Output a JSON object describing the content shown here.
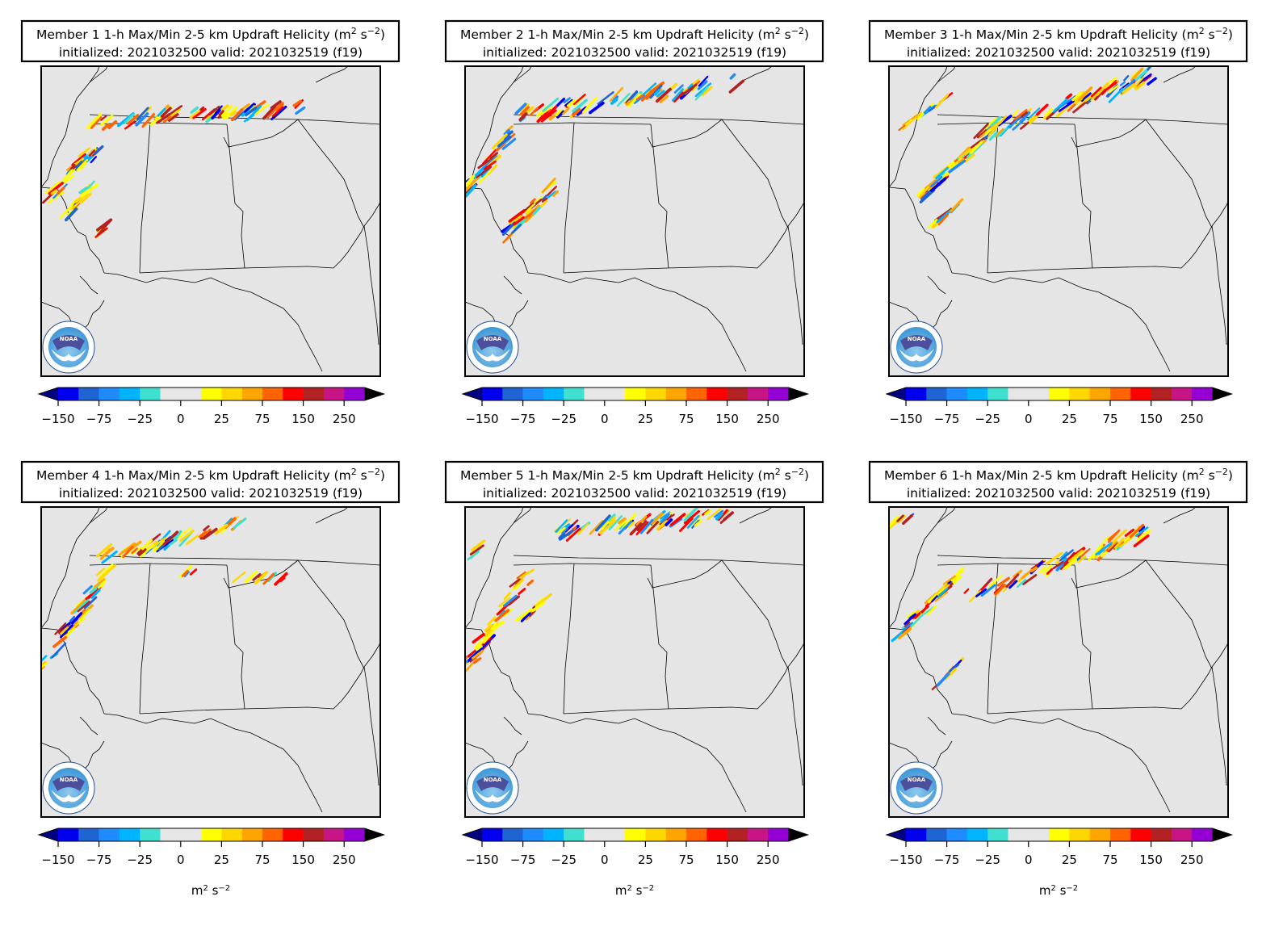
{
  "figure": {
    "title_line2": "initialized: 2021032500 valid: 2021032519 (f19)",
    "title_prefix": "1-h Max/Min 2-5 km Updraft Helicity (m",
    "title_units_sup": "2",
    "title_units_mid": " s",
    "title_units_sup2": "−2",
    "title_units_end": ")"
  },
  "panels": [
    {
      "member": "Member 1"
    },
    {
      "member": "Member 2"
    },
    {
      "member": "Member 3"
    },
    {
      "member": "Member 4"
    },
    {
      "member": "Member 5"
    },
    {
      "member": "Member 6"
    }
  ],
  "colorbar": {
    "tick_labels": [
      "−150",
      "−75",
      "−25",
      "0",
      "25",
      "75",
      "150",
      "250"
    ],
    "bin_colors": [
      "#0000ee",
      "#1e64d2",
      "#1e8cff",
      "#00b4ff",
      "#40e0d0",
      "#e6e6e6",
      "#e6e6e6",
      "#ffff00",
      "#ffd700",
      "#ffa500",
      "#ff6400",
      "#ff0000",
      "#b22222",
      "#c71585",
      "#9400d3"
    ],
    "under_color": "#000080",
    "over_color": "#000000",
    "unit_label": "m",
    "unit_sup": "2",
    "unit_mid": " s",
    "unit_sup2": "−2"
  },
  "logo": {
    "text": "NOAA"
  },
  "map": {
    "background": "#e5e5e5"
  }
}
